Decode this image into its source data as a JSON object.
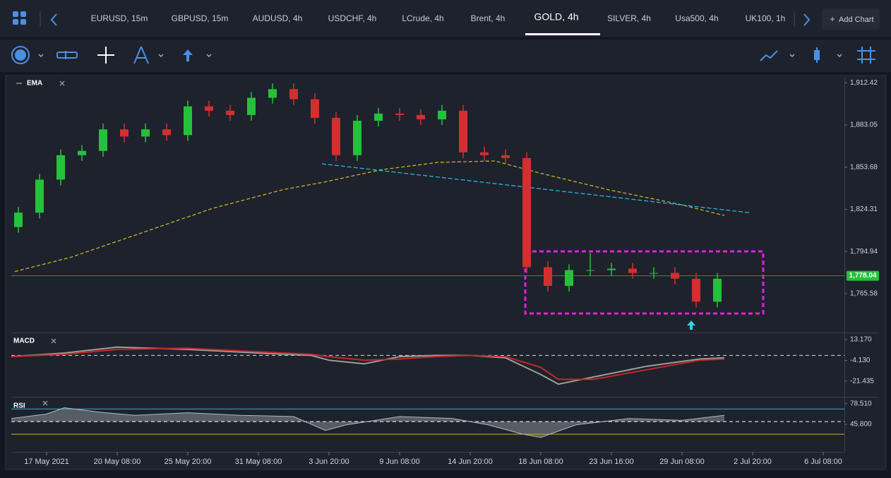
{
  "ui": {
    "tabs": [
      "EURUSD, 15m",
      "GBPUSD, 15m",
      "AUDUSD, 4h",
      "USDCHF, 4h",
      "LCrude, 4h",
      "Brent, 4h",
      "GOLD, 4h",
      "SILVER, 4h",
      "Usa500, 4h",
      "UK100, 1h"
    ],
    "active_tab": 6,
    "add_chart": "Add Chart"
  },
  "chart_data": [
    {
      "type": "candlestick",
      "label": "EMA",
      "xlim": [
        -10,
        226
      ],
      "ylim": [
        1739,
        1916
      ],
      "xticks": [
        {
          "value": 0,
          "label": "17 May 2021"
        },
        {
          "value": 20,
          "label": "20 May 08:00"
        },
        {
          "value": 40,
          "label": "25 May 20:00"
        },
        {
          "value": 60,
          "label": "31 May 08:00"
        },
        {
          "value": 80,
          "label": "3 Jun 20:00"
        },
        {
          "value": 100,
          "label": "9 Jun 08:00"
        },
        {
          "value": 120,
          "label": "14 Jun 20:00"
        },
        {
          "value": 140,
          "label": "18 Jun 08:00"
        },
        {
          "value": 160,
          "label": "23 Jun 16:00"
        },
        {
          "value": 180,
          "label": "29 Jun 08:00"
        },
        {
          "value": 200,
          "label": "2 Jul 20:00"
        },
        {
          "value": 220,
          "label": "6 Jul 08:00"
        }
      ],
      "yticks": [
        {
          "value": 1912.42,
          "label": "1,912.42"
        },
        {
          "value": 1883.05,
          "label": "1,883.05"
        },
        {
          "value": 1853.68,
          "label": "1,853.68"
        },
        {
          "value": 1824.31,
          "label": "1,824.31"
        },
        {
          "value": 1794.94,
          "label": "1,794.94"
        },
        {
          "value": 1765.58,
          "label": "1,765.58"
        }
      ],
      "up_color": "#26c13a",
      "down_color": "#d32f2f",
      "x": [
        -8,
        -2,
        4,
        10,
        16,
        22,
        28,
        34,
        40,
        46,
        52,
        58,
        64,
        70,
        76,
        82,
        88,
        94,
        100,
        106,
        112,
        118,
        124,
        130,
        136,
        142,
        148,
        154,
        160,
        166,
        172,
        178,
        184,
        190
      ],
      "open": [
        1812,
        1822,
        1845,
        1862,
        1865,
        1880,
        1875,
        1880,
        1876,
        1896,
        1893,
        1890,
        1902,
        1908,
        1901,
        1888,
        1862,
        1886,
        1891,
        1890,
        1887,
        1893,
        1864,
        1862,
        1860,
        1784,
        1771,
        1782,
        1782,
        1783,
        1780,
        1780,
        1776,
        1760
      ],
      "close": [
        1822,
        1845,
        1862,
        1865,
        1880,
        1875,
        1880,
        1876,
        1896,
        1893,
        1890,
        1902,
        1908,
        1901,
        1888,
        1862,
        1886,
        1891,
        1890,
        1887,
        1893,
        1864,
        1862,
        1860,
        1784,
        1771,
        1782,
        1782,
        1783,
        1780,
        1780,
        1776,
        1760,
        1776
      ],
      "high": [
        1826,
        1849,
        1866,
        1869,
        1884,
        1884,
        1884,
        1884,
        1900,
        1900,
        1897,
        1906,
        1912,
        1912,
        1905,
        1892,
        1890,
        1895,
        1895,
        1894,
        1897,
        1897,
        1868,
        1866,
        1864,
        1788,
        1786,
        1794,
        1787,
        1787,
        1784,
        1784,
        1780,
        1780
      ],
      "low": [
        1808,
        1818,
        1841,
        1858,
        1861,
        1871,
        1871,
        1872,
        1872,
        1889,
        1886,
        1886,
        1898,
        1897,
        1884,
        1858,
        1858,
        1882,
        1886,
        1883,
        1883,
        1860,
        1858,
        1856,
        1780,
        1767,
        1767,
        1778,
        1778,
        1776,
        1776,
        1772,
        1756,
        1756
      ],
      "ema": {
        "x": [
          -9,
          7,
          27,
          47,
          67,
          79,
          95,
          111,
          127,
          139,
          159,
          179,
          192
        ],
        "values": [
          1781,
          1791,
          1808,
          1825,
          1838,
          1843.5,
          1852,
          1857,
          1858,
          1850,
          1838,
          1828,
          1820
        ],
        "color": "#c9b22a"
      },
      "trendline": {
        "x": [
          78,
          199
        ],
        "values": [
          1856,
          1822
        ],
        "color": "#29b6d6"
      },
      "last_price": {
        "value": 1778.04,
        "label": "1,778.04"
      }
    },
    {
      "type": "line",
      "label": "MACD",
      "ylim": [
        -33.4,
        17.95
      ],
      "yticks": [
        {
          "value": 13.17,
          "label": "13.170"
        },
        {
          "value": -4.13,
          "label": "-4.130"
        },
        -21.435
      ],
      "x": [
        -10,
        5,
        20,
        40,
        60,
        75,
        80,
        90,
        100,
        110,
        120,
        130,
        140,
        145,
        155,
        170,
        185,
        192
      ],
      "series": [
        {
          "color": "#9e9e9e",
          "values": [
            -1,
            2,
            7,
            5,
            2,
            0,
            -4,
            -7,
            -1,
            0,
            0,
            -2,
            -16,
            -24,
            -18,
            -9,
            -3,
            -2
          ]
        },
        {
          "color": "#c62828",
          "values": [
            -1,
            1,
            5,
            6,
            3,
            1,
            -1,
            -4,
            -3,
            -1,
            0,
            -1,
            -10,
            -20,
            -20,
            -12,
            -4,
            -3
          ]
        }
      ]
    },
    {
      "type": "area",
      "label": "RSI",
      "ylim": [
        2,
        86
      ],
      "yticks": [
        {
          "value": 78.51,
          "label": "78.510"
        },
        {
          "value": 45.8,
          "label": "45.800"
        }
      ],
      "levels": [
        70,
        50,
        30
      ],
      "level_colors": [
        "#29b6d6",
        "#ffffff",
        "#c9b22a"
      ],
      "x": [
        -10,
        0,
        5,
        15,
        25,
        40,
        55,
        70,
        79,
        85,
        100,
        115,
        125,
        135,
        140,
        150,
        165,
        180,
        192
      ],
      "values": [
        55,
        62,
        72,
        65,
        60,
        64,
        60,
        58,
        36,
        45,
        58,
        55,
        45,
        30,
        25,
        45,
        55,
        52,
        60
      ],
      "color": "#8a8d94"
    }
  ]
}
